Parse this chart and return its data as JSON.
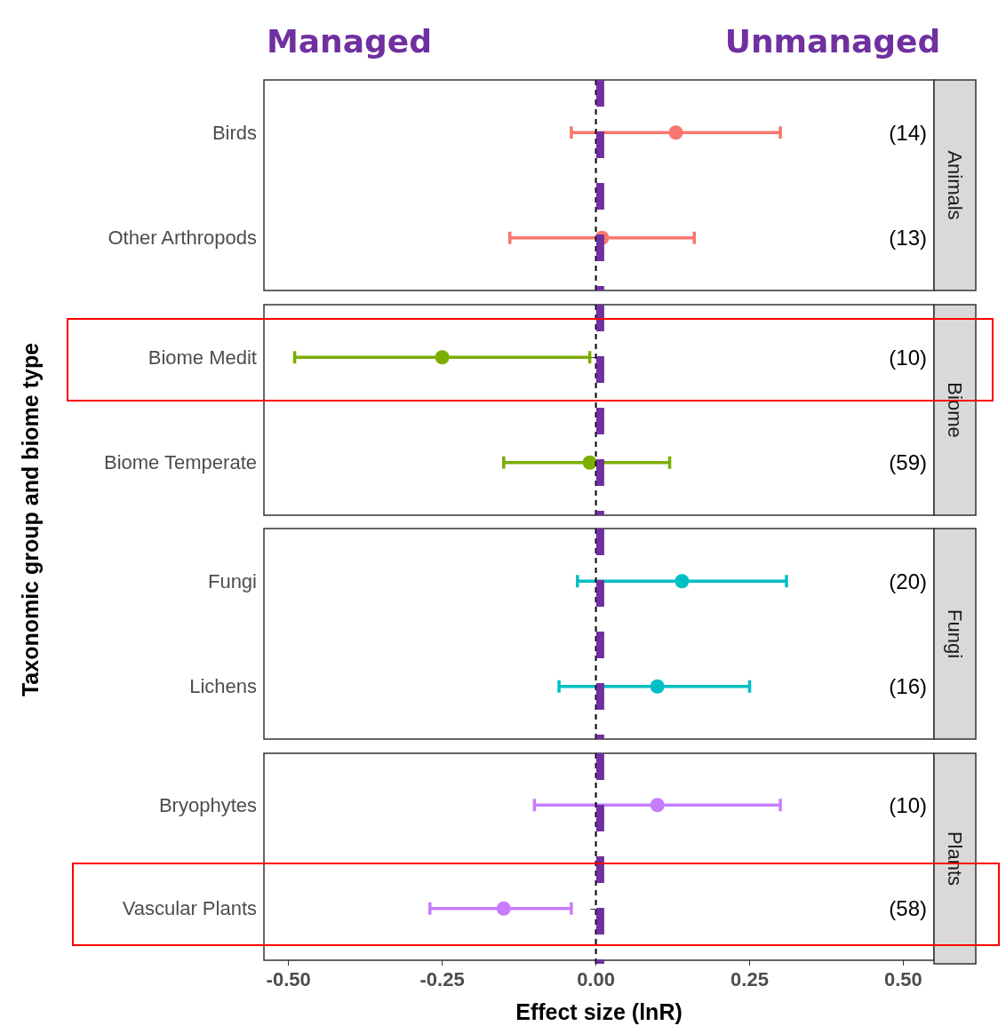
{
  "chart_data": [
    {
      "type": "scatter",
      "orientation": "horizontal",
      "title": "Animals",
      "ylabel": "Taxonomic group and biome type",
      "categories": [
        "Birds",
        "Other Arthropods"
      ],
      "values": [
        0.13,
        0.01
      ],
      "errors": [
        [
          -0.04,
          0.3
        ],
        [
          -0.14,
          0.16
        ]
      ],
      "color": "#f8766d",
      "marker": "circle",
      "xlim": [
        -0.54,
        0.55
      ],
      "tick_labels": "y",
      "annotations": [
        "(14)",
        "(13)",
        "Managed",
        "Unmanaged"
      ],
      "ref_lines": [
        {
          "axis": "x",
          "value": 0,
          "color": "#000000",
          "line_style": "dashed"
        },
        {
          "axis": "x",
          "value": 0.007,
          "color": "#7030a0",
          "line_style": "dashed"
        }
      ]
    },
    {
      "type": "scatter",
      "orientation": "horizontal",
      "title": "Biome",
      "categories": [
        "Biome Medit",
        "Biome Temperate"
      ],
      "values": [
        -0.25,
        -0.01
      ],
      "errors": [
        [
          -0.49,
          -0.01
        ],
        [
          -0.15,
          0.12
        ]
      ],
      "color": "#7cae00",
      "marker": "circle",
      "xlim": [
        -0.54,
        0.55
      ],
      "tick_labels": "y",
      "annotations": [
        "(10)",
        "(59)"
      ],
      "ref_lines": [
        {
          "axis": "x",
          "value": 0,
          "color": "#000000",
          "line_style": "dashed"
        },
        {
          "axis": "x",
          "value": 0.007,
          "color": "#7030a0",
          "line_style": "dashed"
        }
      ]
    },
    {
      "type": "scatter",
      "orientation": "horizontal",
      "title": "Fungi",
      "categories": [
        "Fungi",
        "Lichens"
      ],
      "values": [
        0.14,
        0.1
      ],
      "errors": [
        [
          -0.03,
          0.31
        ],
        [
          -0.06,
          0.25
        ]
      ],
      "color": "#00bfc4",
      "marker": "circle",
      "xlim": [
        -0.54,
        0.55
      ],
      "tick_labels": "y",
      "annotations": [
        "(20)",
        "(16)"
      ],
      "ref_lines": [
        {
          "axis": "x",
          "value": 0,
          "color": "#000000",
          "line_style": "dashed"
        },
        {
          "axis": "x",
          "value": 0.007,
          "color": "#7030a0",
          "line_style": "dashed"
        }
      ]
    },
    {
      "type": "scatter",
      "orientation": "horizontal",
      "title": "Plants",
      "xlabel": "Effect size (lnR)",
      "categories": [
        "Bryophytes",
        "Vascular Plants"
      ],
      "values": [
        0.1,
        -0.15
      ],
      "errors": [
        [
          -0.1,
          0.3
        ],
        [
          -0.27,
          -0.04
        ]
      ],
      "color": "#c77cff",
      "marker": "circle",
      "xlim": [
        -0.54,
        0.55
      ],
      "xticks": [
        {
          "value": -0.5,
          "label": "-0.50"
        },
        {
          "value": -0.25,
          "label": "-0.25"
        },
        {
          "value": 0,
          "label": "0.00"
        },
        {
          "value": 0.25,
          "label": "0.25"
        },
        {
          "value": 0.5,
          "label": "0.50"
        }
      ],
      "annotations": [
        "(10)",
        "(58)"
      ],
      "ref_lines": [
        {
          "axis": "x",
          "value": 0,
          "color": "#000000",
          "line_style": "dashed"
        },
        {
          "axis": "x",
          "value": 0.007,
          "color": "#7030a0",
          "line_style": "dashed"
        }
      ]
    }
  ]
}
